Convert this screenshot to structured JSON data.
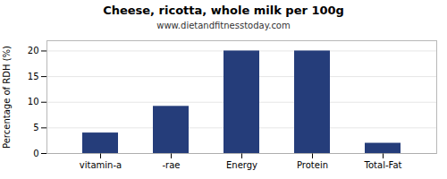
{
  "chart_data": {
    "type": "bar",
    "title": "Cheese, ricotta, whole milk per 100g",
    "subtitle": "www.dietandfitnesstoday.com",
    "categories": [
      "vitamin-a",
      "-rae",
      "Energy",
      "Protein",
      "Total-Fat"
    ],
    "values": [
      4.0,
      9.2,
      20.0,
      20.0,
      2.0
    ],
    "color": "#253d7a",
    "ylabel": "Percentage of RDH (%)",
    "ylim": [
      0,
      22
    ],
    "yticks": [
      0,
      5,
      10,
      15,
      20
    ],
    "grid": true
  }
}
